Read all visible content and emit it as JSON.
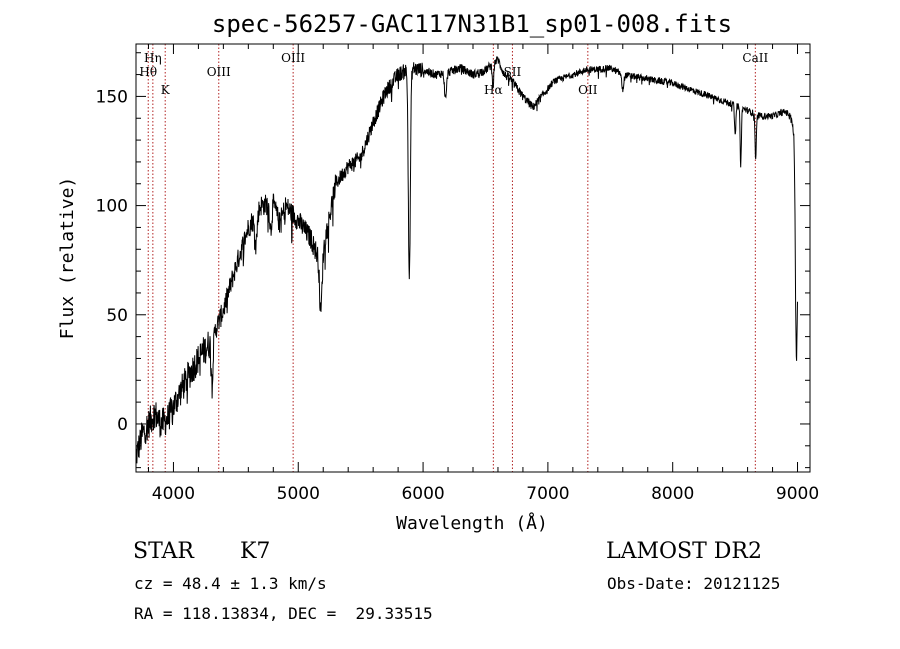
{
  "chart_data": {
    "type": "line",
    "title": "spec-56257-GAC117N31B1_sp01-008.fits",
    "xlabel": "Wavelength (Å)",
    "ylabel": "Flux (relative)",
    "xlim": [
      3700,
      9100
    ],
    "ylim": [
      -22,
      174
    ],
    "xticks": [
      4000,
      5000,
      6000,
      7000,
      8000,
      9000
    ],
    "yticks": [
      0,
      50,
      100,
      150
    ],
    "grid": false,
    "line_color": "#000000",
    "marker_color": "#b22222",
    "spectrum_anchors": [
      [
        3700,
        -15
      ],
      [
        3750,
        -5
      ],
      [
        3800,
        0
      ],
      [
        3850,
        5
      ],
      [
        3900,
        0
      ],
      [
        3950,
        2
      ],
      [
        4000,
        8
      ],
      [
        4100,
        20
      ],
      [
        4200,
        30
      ],
      [
        4300,
        38
      ],
      [
        4400,
        52
      ],
      [
        4500,
        72
      ],
      [
        4600,
        90
      ],
      [
        4700,
        100
      ],
      [
        4800,
        101
      ],
      [
        4850,
        92
      ],
      [
        4900,
        100
      ],
      [
        5000,
        93
      ],
      [
        5100,
        85
      ],
      [
        5150,
        78
      ],
      [
        5200,
        80
      ],
      [
        5300,
        110
      ],
      [
        5400,
        118
      ],
      [
        5500,
        122
      ],
      [
        5600,
        138
      ],
      [
        5700,
        152
      ],
      [
        5800,
        160
      ],
      [
        5900,
        163
      ],
      [
        6000,
        162
      ],
      [
        6100,
        160
      ],
      [
        6200,
        161
      ],
      [
        6300,
        163
      ],
      [
        6400,
        160
      ],
      [
        6500,
        162
      ],
      [
        6600,
        167
      ],
      [
        6650,
        160
      ],
      [
        6700,
        158
      ],
      [
        6800,
        150
      ],
      [
        6880,
        145
      ],
      [
        6950,
        150
      ],
      [
        7050,
        157
      ],
      [
        7200,
        160
      ],
      [
        7300,
        162
      ],
      [
        7500,
        163
      ],
      [
        7600,
        160
      ],
      [
        7800,
        158
      ],
      [
        8000,
        156
      ],
      [
        8200,
        152
      ],
      [
        8400,
        148
      ],
      [
        8500,
        146
      ],
      [
        8700,
        141
      ],
      [
        8800,
        141
      ],
      [
        8900,
        143
      ],
      [
        8950,
        141
      ],
      [
        8970,
        132
      ],
      [
        8985,
        100
      ],
      [
        9000,
        70
      ]
    ],
    "absorption_features": [
      {
        "x": 5890,
        "depth": 95,
        "width": 8
      },
      {
        "x": 4310,
        "depth": 18,
        "width": 8
      },
      {
        "x": 4660,
        "depth": 14,
        "width": 10
      },
      {
        "x": 4780,
        "depth": 12,
        "width": 8
      },
      {
        "x": 5180,
        "depth": 28,
        "width": 10
      },
      {
        "x": 6180,
        "depth": 12,
        "width": 8
      },
      {
        "x": 6560,
        "depth": 10,
        "width": 6
      },
      {
        "x": 7600,
        "depth": 7,
        "width": 8
      },
      {
        "x": 8500,
        "depth": 14,
        "width": 5
      },
      {
        "x": 8545,
        "depth": 26,
        "width": 5
      },
      {
        "x": 8665,
        "depth": 22,
        "width": 5
      },
      {
        "x": 8990,
        "depth": 60,
        "width": 6
      }
    ],
    "line_markers": [
      {
        "label": "Hη",
        "x": 3835,
        "row": 0
      },
      {
        "label": "Hθ",
        "x": 3798,
        "row": 1
      },
      {
        "label": "K",
        "x": 3934,
        "row": 2
      },
      {
        "label": "OIII",
        "x": 4363,
        "row": 1
      },
      {
        "label": "OIII",
        "x": 4959,
        "row": 0
      },
      {
        "label": "Hα",
        "x": 6563,
        "row": 2
      },
      {
        "label": "SII",
        "x": 6716,
        "row": 1
      },
      {
        "label": "OII",
        "x": 7320,
        "row": 2
      },
      {
        "label": "CaII",
        "x": 8662,
        "row": 0
      }
    ]
  },
  "info": {
    "object_class": "STAR",
    "subclass": "K7",
    "redshift": "cz = 48.4 ± 1.3 km/s",
    "coords": "RA = 118.13834, DEC =  29.33515",
    "survey": "LAMOST DR2",
    "obs_date": "Obs-Date: 20121125"
  }
}
